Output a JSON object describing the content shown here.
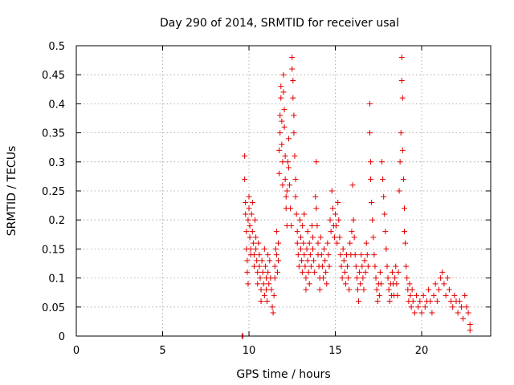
{
  "chart_data": {
    "type": "scatter",
    "title": "Day 290 of 2014, SRMTID for receiver usal",
    "xlabel": "GPS time / hours",
    "ylabel": "SRMTID / TECUs",
    "xlim": [
      0,
      24
    ],
    "ylim": [
      0,
      0.5
    ],
    "xticks": [
      0,
      5,
      10,
      15,
      20
    ],
    "xtick_labels": [
      "0",
      "5",
      "10",
      "15",
      "20"
    ],
    "yticks": [
      0,
      0.05,
      0.1,
      0.15,
      0.2,
      0.25,
      0.3,
      0.35,
      0.4,
      0.45,
      0.5
    ],
    "ytick_labels": [
      "0",
      "0.05",
      "0.1",
      "0.15",
      "0.2",
      "0.25",
      "0.3",
      "0.35",
      "0.4",
      "0.45",
      "0.5"
    ],
    "grid": true,
    "marker": "+",
    "color": "#e00000",
    "series": [
      {
        "name": "SRMTID",
        "points": [
          [
            9.6,
            0.0
          ],
          [
            9.65,
            0.0
          ],
          [
            9.75,
            0.31
          ],
          [
            9.75,
            0.27
          ],
          [
            9.8,
            0.23
          ],
          [
            9.8,
            0.21
          ],
          [
            9.85,
            0.18
          ],
          [
            9.85,
            0.15
          ],
          [
            9.9,
            0.13
          ],
          [
            9.9,
            0.11
          ],
          [
            9.95,
            0.09
          ],
          [
            9.95,
            0.2
          ],
          [
            10.0,
            0.24
          ],
          [
            10.0,
            0.22
          ],
          [
            10.05,
            0.19
          ],
          [
            10.05,
            0.17
          ],
          [
            10.1,
            0.15
          ],
          [
            10.1,
            0.14
          ],
          [
            10.15,
            0.21
          ],
          [
            10.2,
            0.23
          ],
          [
            10.2,
            0.18
          ],
          [
            10.25,
            0.16
          ],
          [
            10.3,
            0.14
          ],
          [
            10.3,
            0.12
          ],
          [
            10.35,
            0.2
          ],
          [
            10.4,
            0.17
          ],
          [
            10.4,
            0.15
          ],
          [
            10.45,
            0.13
          ],
          [
            10.5,
            0.11
          ],
          [
            10.5,
            0.09
          ],
          [
            10.55,
            0.16
          ],
          [
            10.6,
            0.14
          ],
          [
            10.6,
            0.12
          ],
          [
            10.65,
            0.1
          ],
          [
            10.7,
            0.08
          ],
          [
            10.7,
            0.06
          ],
          [
            10.75,
            0.13
          ],
          [
            10.8,
            0.11
          ],
          [
            10.85,
            0.09
          ],
          [
            10.9,
            0.15
          ],
          [
            10.9,
            0.07
          ],
          [
            10.95,
            0.12
          ],
          [
            11.0,
            0.1
          ],
          [
            11.0,
            0.08
          ],
          [
            11.05,
            0.06
          ],
          [
            11.1,
            0.14
          ],
          [
            11.1,
            0.11
          ],
          [
            11.15,
            0.09
          ],
          [
            11.2,
            0.13
          ],
          [
            11.25,
            0.1
          ],
          [
            11.3,
            0.08
          ],
          [
            11.35,
            0.05
          ],
          [
            11.4,
            0.04
          ],
          [
            11.45,
            0.07
          ],
          [
            11.5,
            0.1
          ],
          [
            11.5,
            0.12
          ],
          [
            11.55,
            0.15
          ],
          [
            11.6,
            0.18
          ],
          [
            11.6,
            0.14
          ],
          [
            11.65,
            0.11
          ],
          [
            11.7,
            0.16
          ],
          [
            11.7,
            0.13
          ],
          [
            11.75,
            0.28
          ],
          [
            11.75,
            0.32
          ],
          [
            11.8,
            0.35
          ],
          [
            11.8,
            0.38
          ],
          [
            11.85,
            0.41
          ],
          [
            11.85,
            0.43
          ],
          [
            11.9,
            0.37
          ],
          [
            11.9,
            0.33
          ],
          [
            11.95,
            0.3
          ],
          [
            11.95,
            0.26
          ],
          [
            12.0,
            0.45
          ],
          [
            12.0,
            0.42
          ],
          [
            12.05,
            0.39
          ],
          [
            12.05,
            0.36
          ],
          [
            12.1,
            0.31
          ],
          [
            12.1,
            0.27
          ],
          [
            12.15,
            0.24
          ],
          [
            12.15,
            0.22
          ],
          [
            12.2,
            0.19
          ],
          [
            12.2,
            0.25
          ],
          [
            12.25,
            0.3
          ],
          [
            12.3,
            0.34
          ],
          [
            12.3,
            0.29
          ],
          [
            12.35,
            0.26
          ],
          [
            12.4,
            0.22
          ],
          [
            12.45,
            0.19
          ],
          [
            12.5,
            0.48
          ],
          [
            12.5,
            0.46
          ],
          [
            12.55,
            0.44
          ],
          [
            12.55,
            0.41
          ],
          [
            12.6,
            0.38
          ],
          [
            12.6,
            0.35
          ],
          [
            12.65,
            0.31
          ],
          [
            12.7,
            0.27
          ],
          [
            12.7,
            0.24
          ],
          [
            12.75,
            0.21
          ],
          [
            12.8,
            0.18
          ],
          [
            12.8,
            0.16
          ],
          [
            12.85,
            0.14
          ],
          [
            12.9,
            0.12
          ],
          [
            12.95,
            0.2
          ],
          [
            13.0,
            0.17
          ],
          [
            13.0,
            0.15
          ],
          [
            13.05,
            0.13
          ],
          [
            13.1,
            0.11
          ],
          [
            13.1,
            0.19
          ],
          [
            13.15,
            0.16
          ],
          [
            13.2,
            0.21
          ],
          [
            13.2,
            0.14
          ],
          [
            13.25,
            0.12
          ],
          [
            13.3,
            0.1
          ],
          [
            13.3,
            0.08
          ],
          [
            13.35,
            0.15
          ],
          [
            13.4,
            0.18
          ],
          [
            13.4,
            0.13
          ],
          [
            13.45,
            0.11
          ],
          [
            13.5,
            0.16
          ],
          [
            13.5,
            0.09
          ],
          [
            13.55,
            0.14
          ],
          [
            13.6,
            0.12
          ],
          [
            13.65,
            0.19
          ],
          [
            13.7,
            0.17
          ],
          [
            13.7,
            0.15
          ],
          [
            13.75,
            0.13
          ],
          [
            13.8,
            0.11
          ],
          [
            13.85,
            0.24
          ],
          [
            13.9,
            0.3
          ],
          [
            13.9,
            0.22
          ],
          [
            13.95,
            0.19
          ],
          [
            14.0,
            0.16
          ],
          [
            14.0,
            0.14
          ],
          [
            14.05,
            0.12
          ],
          [
            14.1,
            0.1
          ],
          [
            14.1,
            0.08
          ],
          [
            14.15,
            0.17
          ],
          [
            14.2,
            0.14
          ],
          [
            14.25,
            0.12
          ],
          [
            14.3,
            0.1
          ],
          [
            14.35,
            0.15
          ],
          [
            14.4,
            0.13
          ],
          [
            14.45,
            0.11
          ],
          [
            14.5,
            0.09
          ],
          [
            14.55,
            0.16
          ],
          [
            14.6,
            0.14
          ],
          [
            14.65,
            0.12
          ],
          [
            14.7,
            0.2
          ],
          [
            14.75,
            0.18
          ],
          [
            14.8,
            0.25
          ],
          [
            14.85,
            0.22
          ],
          [
            14.9,
            0.19
          ],
          [
            14.95,
            0.17
          ],
          [
            15.0,
            0.21
          ],
          [
            15.05,
            0.19
          ],
          [
            15.1,
            0.16
          ],
          [
            15.15,
            0.23
          ],
          [
            15.2,
            0.2
          ],
          [
            15.25,
            0.17
          ],
          [
            15.3,
            0.14
          ],
          [
            15.35,
            0.12
          ],
          [
            15.4,
            0.1
          ],
          [
            15.45,
            0.15
          ],
          [
            15.5,
            0.13
          ],
          [
            15.55,
            0.11
          ],
          [
            15.6,
            0.09
          ],
          [
            15.65,
            0.14
          ],
          [
            15.7,
            0.12
          ],
          [
            15.75,
            0.1
          ],
          [
            15.8,
            0.08
          ],
          [
            15.85,
            0.16
          ],
          [
            15.9,
            0.14
          ],
          [
            15.95,
            0.18
          ],
          [
            16.0,
            0.26
          ],
          [
            16.05,
            0.2
          ],
          [
            16.1,
            0.17
          ],
          [
            16.15,
            0.14
          ],
          [
            16.2,
            0.12
          ],
          [
            16.25,
            0.1
          ],
          [
            16.3,
            0.08
          ],
          [
            16.35,
            0.06
          ],
          [
            16.4,
            0.11
          ],
          [
            16.45,
            0.09
          ],
          [
            16.5,
            0.14
          ],
          [
            16.55,
            0.12
          ],
          [
            16.6,
            0.1
          ],
          [
            16.65,
            0.08
          ],
          [
            16.7,
            0.13
          ],
          [
            16.75,
            0.11
          ],
          [
            16.8,
            0.16
          ],
          [
            16.85,
            0.14
          ],
          [
            16.9,
            0.12
          ],
          [
            17.0,
            0.4
          ],
          [
            17.0,
            0.35
          ],
          [
            17.05,
            0.3
          ],
          [
            17.05,
            0.27
          ],
          [
            17.1,
            0.23
          ],
          [
            17.15,
            0.2
          ],
          [
            17.2,
            0.17
          ],
          [
            17.25,
            0.14
          ],
          [
            17.3,
            0.12
          ],
          [
            17.35,
            0.1
          ],
          [
            17.4,
            0.08
          ],
          [
            17.45,
            0.06
          ],
          [
            17.5,
            0.09
          ],
          [
            17.55,
            0.07
          ],
          [
            17.6,
            0.11
          ],
          [
            17.65,
            0.09
          ],
          [
            17.7,
            0.3
          ],
          [
            17.75,
            0.27
          ],
          [
            17.8,
            0.24
          ],
          [
            17.85,
            0.21
          ],
          [
            17.9,
            0.18
          ],
          [
            17.95,
            0.15
          ],
          [
            18.0,
            0.12
          ],
          [
            18.05,
            0.1
          ],
          [
            18.1,
            0.08
          ],
          [
            18.15,
            0.06
          ],
          [
            18.2,
            0.09
          ],
          [
            18.25,
            0.07
          ],
          [
            18.3,
            0.11
          ],
          [
            18.35,
            0.09
          ],
          [
            18.4,
            0.07
          ],
          [
            18.45,
            0.1
          ],
          [
            18.5,
            0.12
          ],
          [
            18.55,
            0.09
          ],
          [
            18.6,
            0.07
          ],
          [
            18.65,
            0.11
          ],
          [
            18.7,
            0.25
          ],
          [
            18.75,
            0.3
          ],
          [
            18.8,
            0.35
          ],
          [
            18.85,
            0.48
          ],
          [
            18.85,
            0.44
          ],
          [
            18.9,
            0.41
          ],
          [
            18.9,
            0.32
          ],
          [
            18.95,
            0.27
          ],
          [
            19.0,
            0.22
          ],
          [
            19.0,
            0.18
          ],
          [
            19.05,
            0.16
          ],
          [
            19.1,
            0.12
          ],
          [
            19.15,
            0.1
          ],
          [
            19.2,
            0.08
          ],
          [
            19.25,
            0.06
          ],
          [
            19.3,
            0.09
          ],
          [
            19.35,
            0.07
          ],
          [
            19.4,
            0.05
          ],
          [
            19.45,
            0.08
          ],
          [
            19.5,
            0.06
          ],
          [
            19.6,
            0.04
          ],
          [
            19.7,
            0.07
          ],
          [
            19.8,
            0.05
          ],
          [
            19.9,
            0.06
          ],
          [
            20.0,
            0.04
          ],
          [
            20.1,
            0.07
          ],
          [
            20.2,
            0.05
          ],
          [
            20.3,
            0.06
          ],
          [
            20.4,
            0.08
          ],
          [
            20.5,
            0.06
          ],
          [
            20.6,
            0.04
          ],
          [
            20.7,
            0.07
          ],
          [
            20.8,
            0.09
          ],
          [
            20.9,
            0.06
          ],
          [
            21.0,
            0.08
          ],
          [
            21.1,
            0.1
          ],
          [
            21.2,
            0.11
          ],
          [
            21.3,
            0.09
          ],
          [
            21.4,
            0.07
          ],
          [
            21.5,
            0.1
          ],
          [
            21.6,
            0.08
          ],
          [
            21.7,
            0.06
          ],
          [
            21.8,
            0.05
          ],
          [
            21.9,
            0.07
          ],
          [
            22.0,
            0.06
          ],
          [
            22.1,
            0.04
          ],
          [
            22.2,
            0.06
          ],
          [
            22.3,
            0.05
          ],
          [
            22.4,
            0.03
          ],
          [
            22.5,
            0.07
          ],
          [
            22.6,
            0.05
          ],
          [
            22.7,
            0.04
          ],
          [
            22.8,
            0.02
          ],
          [
            22.8,
            0.01
          ]
        ]
      }
    ]
  }
}
